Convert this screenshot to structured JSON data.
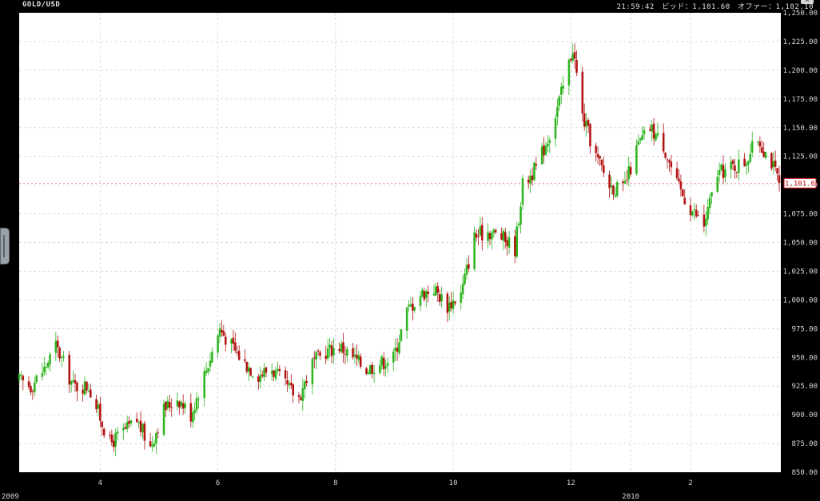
{
  "window": {
    "title": "GOLD/USD",
    "quote_text": "21:59:42　ビッド：1,101.60　オファー：1,102.10",
    "close_symbol": "x"
  },
  "colors": {
    "up": "#2db51f",
    "down": "#b31212",
    "plot_bg": "#ffffff",
    "frame": "#000000",
    "grid": "#cfcfcf"
  },
  "chart_data": {
    "type": "candlestick",
    "title": "GOLD/USD",
    "xlabel": "",
    "ylabel": "",
    "ylim": [
      850,
      1250
    ],
    "y_ticks": [
      850,
      875,
      900,
      925,
      950,
      975,
      1000,
      1025,
      1050,
      1075,
      1100,
      1125,
      1150,
      1175,
      1200,
      1225,
      1250
    ],
    "y_tick_labels": [
      "850.00",
      "875.00",
      "900.00",
      "925.00",
      "950.00",
      "975.00",
      "1,000.00",
      "1,025.00",
      "1,050.00",
      "1,075.00",
      "1,100.00",
      "1,125.00",
      "1,150.00",
      "1,175.00",
      "1,200.00",
      "1,225.00",
      "1,250.00"
    ],
    "x_ticks": [
      {
        "label": "2009",
        "date": "2009-02-18",
        "year": true
      },
      {
        "label": "4",
        "date": "2009-04-01"
      },
      {
        "label": "6",
        "date": "2009-06-01"
      },
      {
        "label": "8",
        "date": "2009-08-01"
      },
      {
        "label": "10",
        "date": "2009-10-01"
      },
      {
        "label": "12",
        "date": "2009-12-01"
      },
      {
        "label": "2010",
        "date": "2010-01-01",
        "year": true
      },
      {
        "label": "2",
        "date": "2010-02-01"
      }
    ],
    "grid": true,
    "last_price": 1101.6,
    "last_price_label": "1,101.6",
    "close_path": [
      [
        "2009-02-18",
        930
      ],
      [
        "2009-02-24",
        925
      ],
      [
        "2009-03-03",
        940
      ],
      [
        "2009-03-09",
        960
      ],
      [
        "2009-03-18",
        925
      ],
      [
        "2009-03-26",
        925
      ],
      [
        "2009-04-06",
        875
      ],
      [
        "2009-04-13",
        885
      ],
      [
        "2009-04-20",
        895
      ],
      [
        "2009-04-27",
        872
      ],
      [
        "2009-05-04",
        905
      ],
      [
        "2009-05-11",
        915
      ],
      [
        "2009-05-18",
        900
      ],
      [
        "2009-05-25",
        935
      ],
      [
        "2009-06-02",
        975
      ],
      [
        "2009-06-08",
        960
      ],
      [
        "2009-06-15",
        945
      ],
      [
        "2009-06-22",
        935
      ],
      [
        "2009-06-29",
        940
      ],
      [
        "2009-07-06",
        925
      ],
      [
        "2009-07-13",
        915
      ],
      [
        "2009-07-20",
        945
      ],
      [
        "2009-07-27",
        955
      ],
      [
        "2009-08-03",
        960
      ],
      [
        "2009-08-10",
        950
      ],
      [
        "2009-08-17",
        940
      ],
      [
        "2009-08-24",
        945
      ],
      [
        "2009-08-31",
        950
      ],
      [
        "2009-09-07",
        990
      ],
      [
        "2009-09-14",
        1005
      ],
      [
        "2009-09-21",
        1010
      ],
      [
        "2009-09-28",
        995
      ],
      [
        "2009-10-05",
        1005
      ],
      [
        "2009-10-12",
        1055
      ],
      [
        "2009-10-19",
        1060
      ],
      [
        "2009-10-26",
        1055
      ],
      [
        "2009-11-02",
        1045
      ],
      [
        "2009-11-06",
        1100
      ],
      [
        "2009-11-13",
        1115
      ],
      [
        "2009-11-20",
        1145
      ],
      [
        "2009-11-27",
        1185
      ],
      [
        "2009-12-02",
        1220
      ],
      [
        "2009-12-07",
        1160
      ],
      [
        "2009-12-14",
        1125
      ],
      [
        "2009-12-21",
        1100
      ],
      [
        "2009-12-28",
        1095
      ],
      [
        "2010-01-05",
        1135
      ],
      [
        "2010-01-11",
        1150
      ],
      [
        "2010-01-18",
        1135
      ],
      [
        "2010-01-25",
        1100
      ],
      [
        "2010-02-01",
        1080
      ],
      [
        "2010-02-08",
        1065
      ],
      [
        "2010-02-15",
        1110
      ],
      [
        "2010-02-22",
        1115
      ],
      [
        "2010-03-01",
        1120
      ],
      [
        "2010-03-08",
        1140
      ],
      [
        "2010-03-15",
        1120
      ],
      [
        "2010-03-19",
        1101.6
      ]
    ]
  }
}
